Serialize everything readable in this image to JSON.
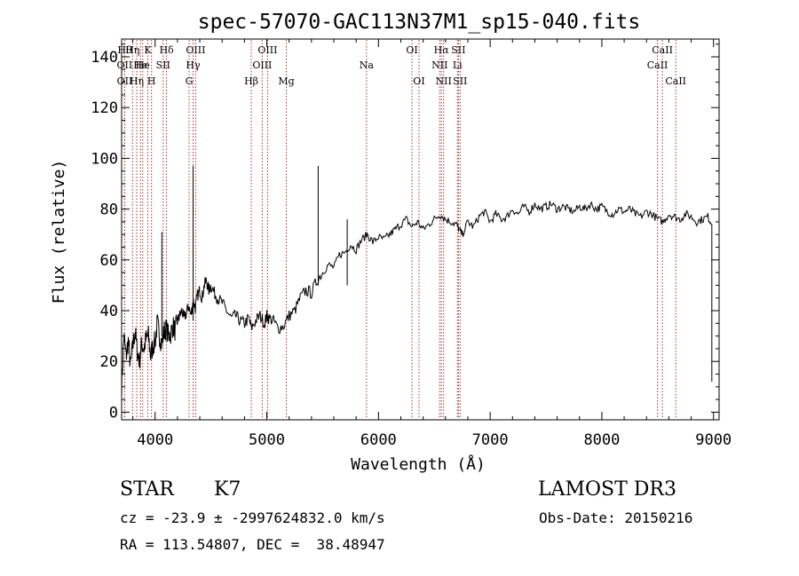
{
  "chart_data": {
    "type": "line",
    "title": "spec-57070-GAC113N37M1_sp15-040.fits",
    "xlabel": "Wavelength (Å)",
    "ylabel": "Flux (relative)",
    "xlim": [
      3700,
      9050
    ],
    "ylim": [
      -3,
      147
    ],
    "xticks": [
      4000,
      5000,
      6000,
      7000,
      8000,
      9000
    ],
    "yticks": [
      0,
      20,
      40,
      60,
      80,
      100,
      120,
      140
    ],
    "grid": false,
    "spectrum": {
      "x": [
        3700,
        3720,
        3740,
        3760,
        3780,
        3800,
        3820,
        3840,
        3860,
        3880,
        3900,
        3920,
        3940,
        3960,
        3980,
        4000,
        4020,
        4040,
        4060,
        4080,
        4100,
        4120,
        4140,
        4160,
        4180,
        4200,
        4220,
        4240,
        4260,
        4280,
        4300,
        4320,
        4340,
        4360,
        4380,
        4400,
        4420,
        4440,
        4460,
        4480,
        4500,
        4530,
        4560,
        4600,
        4640,
        4680,
        4720,
        4760,
        4800,
        4840,
        4860,
        4900,
        4940,
        4980,
        5000,
        5020,
        5060,
        5100,
        5150,
        5200,
        5250,
        5300,
        5350,
        5400,
        5450,
        5500,
        5550,
        5600,
        5650,
        5700,
        5750,
        5800,
        5850,
        5900,
        5950,
        6000,
        6050,
        6100,
        6150,
        6200,
        6250,
        6300,
        6350,
        6400,
        6450,
        6500,
        6550,
        6600,
        6650,
        6700,
        6720,
        6750,
        6800,
        6850,
        6900,
        6950,
        7000,
        7050,
        7100,
        7150,
        7200,
        7250,
        7300,
        7350,
        7400,
        7450,
        7500,
        7550,
        7600,
        7650,
        7700,
        7750,
        7800,
        7850,
        7900,
        7950,
        8000,
        8050,
        8100,
        8150,
        8200,
        8250,
        8300,
        8350,
        8400,
        8450,
        8500,
        8550,
        8600,
        8650,
        8700,
        8750,
        8800,
        8850,
        8900,
        8950,
        8985
      ],
      "y": [
        10,
        30,
        22,
        28,
        18,
        26,
        32,
        24,
        20,
        27,
        25,
        29,
        30,
        22,
        26,
        28,
        35,
        30,
        27,
        32,
        33,
        30,
        31,
        34,
        32,
        36,
        38,
        40,
        37,
        39,
        42,
        38,
        44,
        41,
        46,
        48,
        45,
        50,
        52,
        48,
        50,
        47,
        45,
        43,
        40,
        37,
        38,
        36,
        35,
        37,
        33,
        36,
        38,
        35,
        38,
        37,
        36,
        33,
        34,
        38,
        40,
        45,
        48,
        47,
        52,
        55,
        58,
        57,
        62,
        63,
        66,
        64,
        68,
        70,
        67,
        69,
        68,
        70,
        72,
        74,
        76,
        73,
        75,
        72,
        74,
        76,
        78,
        76,
        75,
        74,
        72,
        70,
        75,
        73,
        77,
        79,
        75,
        78,
        76,
        77,
        80,
        78,
        81,
        79,
        82,
        80,
        81,
        82,
        80,
        81,
        80,
        79,
        81,
        80,
        82,
        80,
        81,
        79,
        78,
        80,
        79,
        80,
        78,
        77,
        79,
        78,
        76,
        75,
        78,
        77,
        76,
        78,
        77,
        75,
        76,
        77,
        74
      ],
      "spikes": [
        {
          "x": 3700,
          "lo": 0,
          "hi": 40
        },
        {
          "x": 4060,
          "lo": 30,
          "hi": 71
        },
        {
          "x": 4340,
          "lo": 36,
          "hi": 97
        },
        {
          "x": 5460,
          "lo": 50,
          "hi": 97
        },
        {
          "x": 5720,
          "lo": 50,
          "hi": 76
        },
        {
          "x": 8985,
          "lo": 12,
          "hi": 74
        }
      ]
    },
    "lines": [
      {
        "x": 3728,
        "row": 1,
        "label": "Hθ"
      },
      {
        "x": 3727,
        "row": 2,
        "label": "OII"
      },
      {
        "x": 3728,
        "row": 3,
        "label": "OII"
      },
      {
        "x": 3798,
        "row": 1,
        "label": "Hη"
      },
      {
        "x": 3835,
        "row": 3,
        "label": "Hη"
      },
      {
        "x": 3869,
        "row": 2,
        "label": "He"
      },
      {
        "x": 3889,
        "row": 2,
        "label": "He"
      },
      {
        "x": 3934,
        "row": 1,
        "label": "K"
      },
      {
        "x": 3968,
        "row": 3,
        "label": "H"
      },
      {
        "x": 4072,
        "row": 2,
        "label": "SII"
      },
      {
        "x": 4102,
        "row": 1,
        "label": "Hδ"
      },
      {
        "x": 4304,
        "row": 3,
        "label": "G"
      },
      {
        "x": 4340,
        "row": 2,
        "label": "Hγ"
      },
      {
        "x": 4363,
        "row": 1,
        "label": "OIII"
      },
      {
        "x": 4861,
        "row": 3,
        "label": "Hβ"
      },
      {
        "x": 4959,
        "row": 2,
        "label": "OIII"
      },
      {
        "x": 5007,
        "row": 1,
        "label": "OIII"
      },
      {
        "x": 5175,
        "row": 3,
        "label": "Mg"
      },
      {
        "x": 5893,
        "row": 2,
        "label": "Na"
      },
      {
        "x": 6300,
        "row": 1,
        "label": "OI"
      },
      {
        "x": 6363,
        "row": 3,
        "label": "OI"
      },
      {
        "x": 6548,
        "row": 2,
        "label": "NII"
      },
      {
        "x": 6563,
        "row": 1,
        "label": "Hα"
      },
      {
        "x": 6583,
        "row": 3,
        "label": "NII"
      },
      {
        "x": 6707,
        "row": 2,
        "label": "Li"
      },
      {
        "x": 6716,
        "row": 1,
        "label": "SII"
      },
      {
        "x": 6731,
        "row": 3,
        "label": "SII"
      },
      {
        "x": 8498,
        "row": 2,
        "label": "CaII"
      },
      {
        "x": 8542,
        "row": 1,
        "label": "CaII"
      },
      {
        "x": 8662,
        "row": 3,
        "label": "CaII"
      }
    ]
  },
  "info": {
    "class": "STAR",
    "subclass": "K7",
    "survey": "LAMOST DR3",
    "cz": "cz = -23.9 ± -2997624832.0 km/s",
    "obs_date": "Obs-Date: 20150216",
    "coords": "RA = 113.54807, DEC =  38.48947"
  }
}
